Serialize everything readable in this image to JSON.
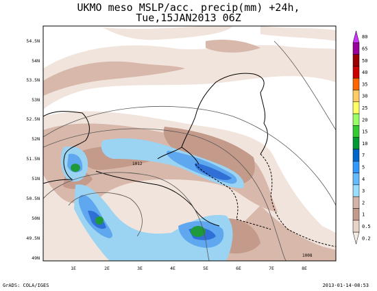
{
  "title": {
    "line1": "UKMO meso MSLP/acc. precip(mm) +24h,",
    "line2": "Tue,15JAN2013 06Z"
  },
  "footer": {
    "left": "GrADS: COLA/IGES",
    "right": "2013-01-14-08:53"
  },
  "map": {
    "lat_labels": [
      "54.5N",
      "54N",
      "53.5N",
      "53N",
      "52.5N",
      "52N",
      "51.5N",
      "51N",
      "50.5N",
      "50N",
      "49.5N",
      "49N"
    ],
    "lon_labels": [
      "1E",
      "2E",
      "3E",
      "4E",
      "5E",
      "6E",
      "7E",
      "8E"
    ],
    "isobar_labels": [
      "1012",
      "1008"
    ]
  },
  "legend": {
    "items": [
      {
        "label": "80",
        "color": "#cc33ff"
      },
      {
        "label": "65",
        "color": "#990099"
      },
      {
        "label": "50",
        "color": "#990000"
      },
      {
        "label": "40",
        "color": "#cc0000"
      },
      {
        "label": "35",
        "color": "#ff6600"
      },
      {
        "label": "30",
        "color": "#ffcc66"
      },
      {
        "label": "25",
        "color": "#ffff66"
      },
      {
        "label": "20",
        "color": "#99ff66"
      },
      {
        "label": "15",
        "color": "#33cc33"
      },
      {
        "label": "10",
        "color": "#009933"
      },
      {
        "label": "7",
        "color": "#0066cc"
      },
      {
        "label": "5",
        "color": "#3399ff"
      },
      {
        "label": "4",
        "color": "#66bbff"
      },
      {
        "label": "3",
        "color": "#99ddff"
      },
      {
        "label": "2",
        "color": "#d2b4a8"
      },
      {
        "label": "1",
        "color": "#c49a8a"
      },
      {
        "label": "0.5",
        "color": "#e8d3c8"
      },
      {
        "label": "0.2",
        "color": "#f5ebe5"
      }
    ]
  }
}
